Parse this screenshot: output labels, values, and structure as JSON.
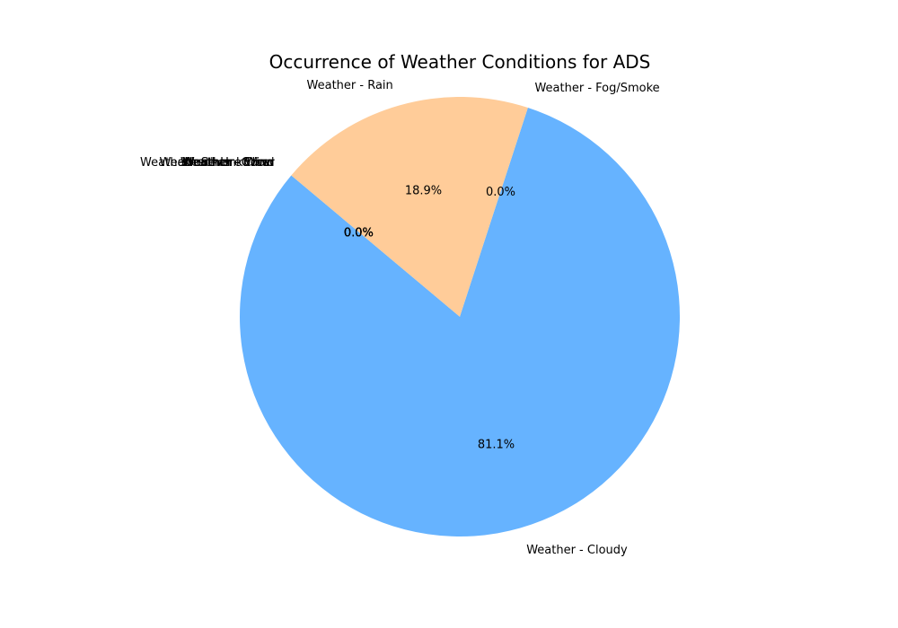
{
  "chart_data": {
    "type": "pie",
    "title": "Occurrence of Weather Conditions for ADS",
    "start_angle_deg": 140,
    "direction": "counterclockwise",
    "slices": [
      {
        "label": "Weather - Cloudy",
        "value": 81.1,
        "pct_label": "81.1%",
        "color": "#66b3ff"
      },
      {
        "label": "Weather - Fog/Smoke",
        "value": 0.0,
        "pct_label": "0.0%",
        "color": "#99ff99"
      },
      {
        "label": "Weather - Rain",
        "value": 18.9,
        "pct_label": "18.9%",
        "color": "#ffcc99"
      },
      {
        "label": "Weather - Snow",
        "value": 0.0,
        "pct_label": "0.0%",
        "color": "#ff9999"
      },
      {
        "label": "Weather - Severe Wind",
        "value": 0.0,
        "pct_label": "0.0%",
        "color": "#c2c2f0"
      },
      {
        "label": "Weather - Other",
        "value": 0.0,
        "pct_label": "0.0%",
        "color": "#ffb3e6"
      },
      {
        "label": "Weather - Unknown",
        "value": 0.0,
        "pct_label": "0.0%",
        "color": "#c4e17f"
      },
      {
        "label": "Weather - Clear",
        "value": 0.0,
        "pct_label": "0.0%",
        "color": "#76d7c4"
      }
    ]
  }
}
